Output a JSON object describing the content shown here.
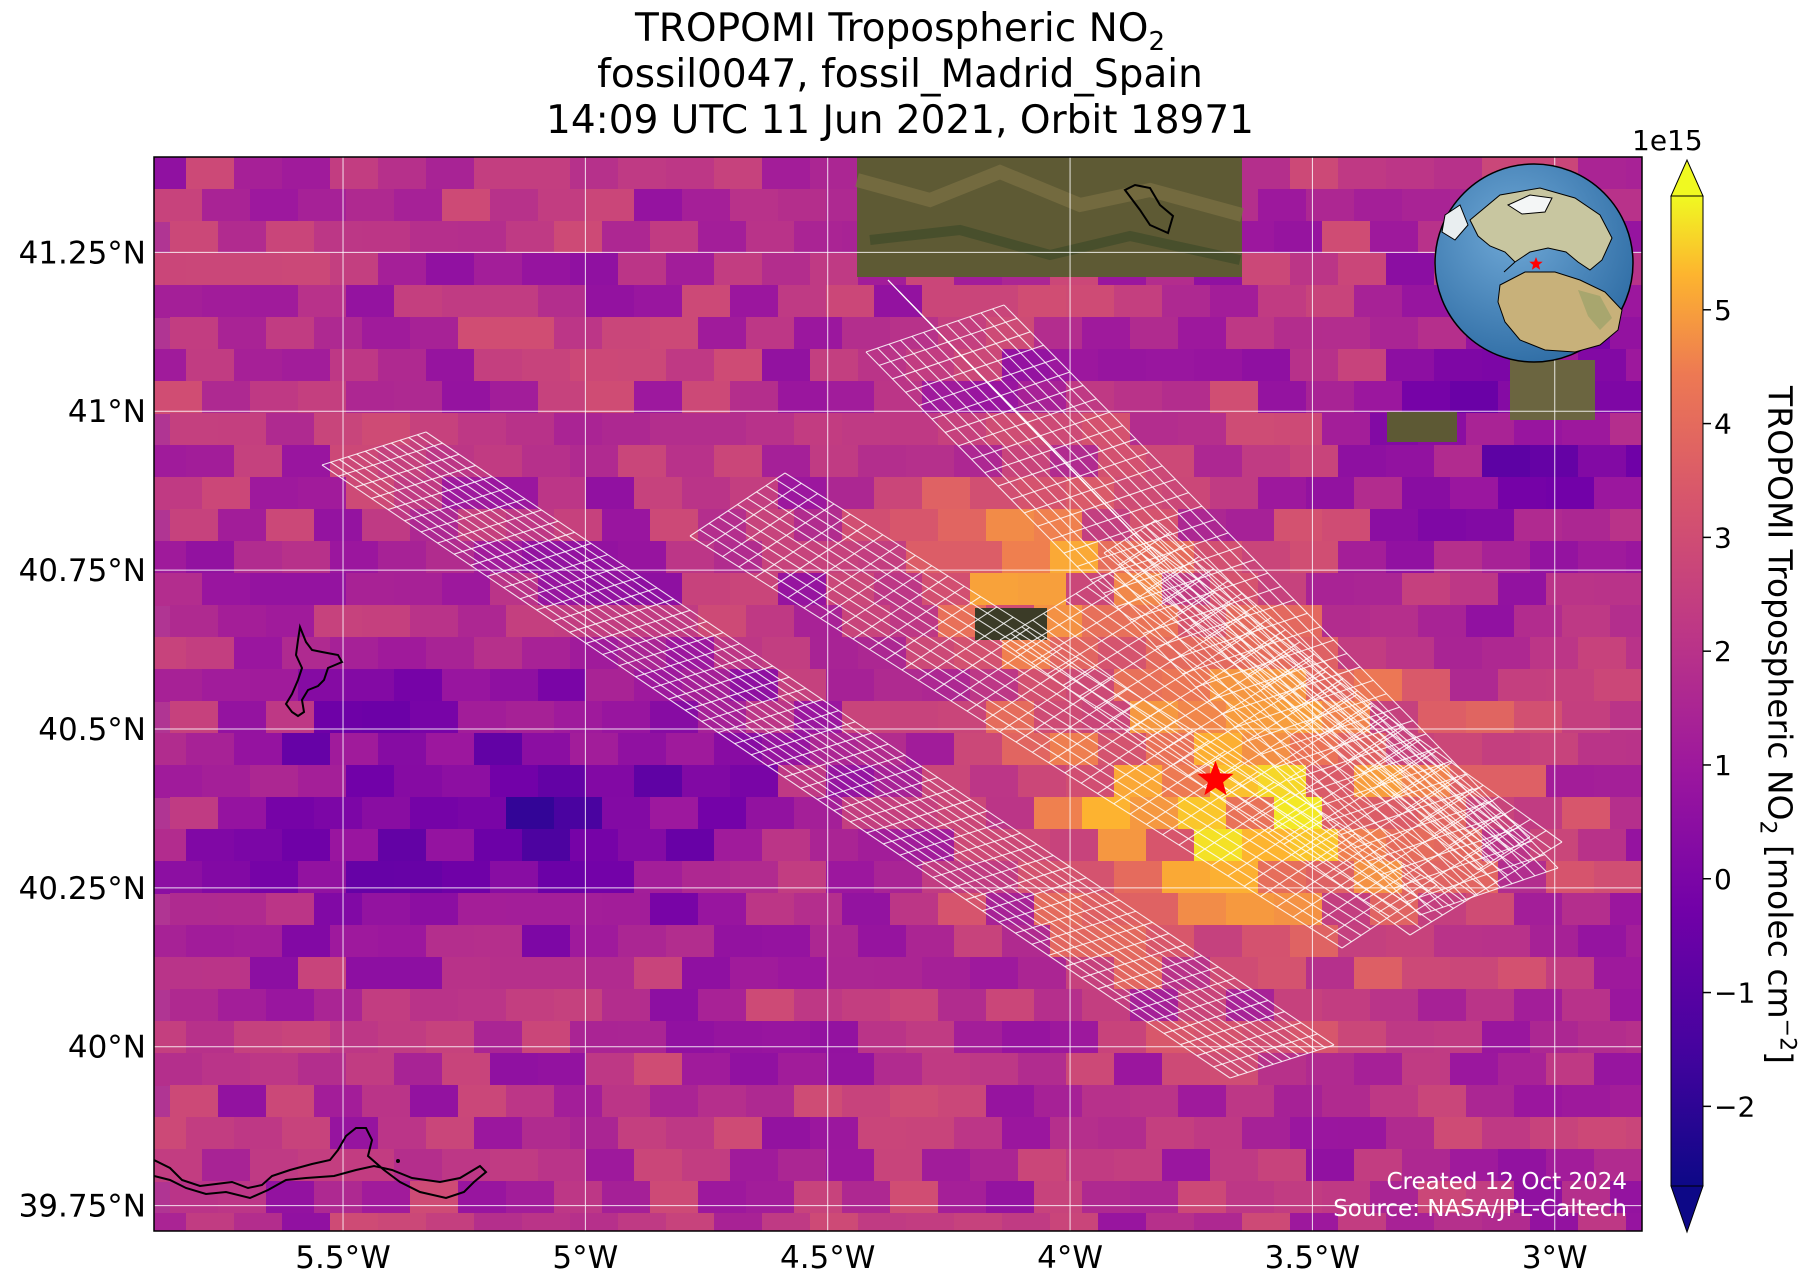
{
  "title": {
    "line1": "TROPOMI Tropospheric NO",
    "line1_sub": "2",
    "line2": "fossil0047, fossil_Madrid_Spain",
    "line3": "14:09 UTC 11 Jun 2021, Orbit 18971"
  },
  "axes": {
    "y_ticks": [
      {
        "value": 41.25,
        "label": "41.25°N"
      },
      {
        "value": 41.0,
        "label": "41°N"
      },
      {
        "value": 40.75,
        "label": "40.75°N"
      },
      {
        "value": 40.5,
        "label": "40.5°N"
      },
      {
        "value": 40.25,
        "label": "40.25°N"
      },
      {
        "value": 40.0,
        "label": "40°N"
      },
      {
        "value": 39.75,
        "label": "39.75°N"
      }
    ],
    "x_ticks": [
      {
        "value": -5.5,
        "label": "5.5°W"
      },
      {
        "value": -5.0,
        "label": "5°W"
      },
      {
        "value": -4.5,
        "label": "4.5°W"
      },
      {
        "value": -4.0,
        "label": "4°W"
      },
      {
        "value": -3.5,
        "label": "3.5°W"
      },
      {
        "value": -3.0,
        "label": "3°W"
      }
    ],
    "lon_range": [
      -5.89,
      -2.82
    ],
    "lat_range": [
      39.71,
      41.4
    ],
    "gridlines": true
  },
  "colorbar": {
    "label": "TROPOMI Tropospheric NO",
    "label_sub": "2",
    "label_units": " [molec cm",
    "label_sup": "−2",
    "label_end": "]",
    "exponent": "1e15",
    "range": [
      -2.7,
      6.0
    ],
    "extend": "both",
    "colormap": "plasma",
    "ticks": [
      {
        "value": 5,
        "label": "5"
      },
      {
        "value": 4,
        "label": "4"
      },
      {
        "value": 3,
        "label": "3"
      },
      {
        "value": 2,
        "label": "2"
      },
      {
        "value": 1,
        "label": "1"
      },
      {
        "value": 0,
        "label": "0"
      },
      {
        "value": -1,
        "label": "−1"
      },
      {
        "value": -2,
        "label": "−2"
      }
    ]
  },
  "marker": {
    "type": "star",
    "lon": -3.7,
    "lat": 40.42,
    "color": "#ff0000"
  },
  "footer": {
    "created": "Created 12 Oct 2024",
    "source": "Source: NASA/JPL-Caltech"
  },
  "inset": {
    "type": "globe-locator",
    "marker_color": "#ff0000"
  },
  "colors": {
    "grid": "#ffffff",
    "footprint": "#ffffff",
    "coastline": "#000000"
  }
}
